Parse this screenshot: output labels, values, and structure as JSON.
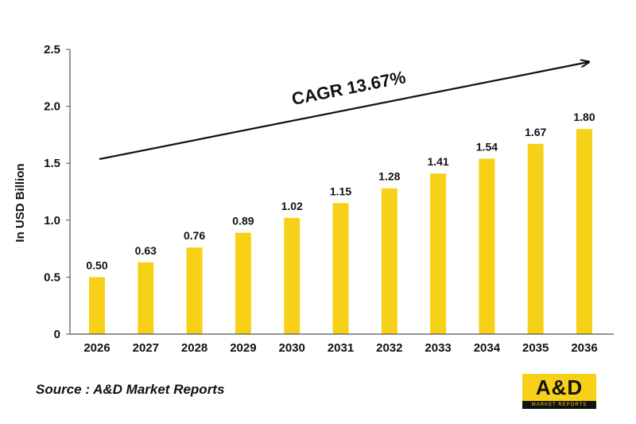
{
  "chart_data": {
    "type": "bar",
    "categories": [
      "2026",
      "2027",
      "2028",
      "2029",
      "2030",
      "2031",
      "2032",
      "2033",
      "2034",
      "2035",
      "2036"
    ],
    "values": [
      0.5,
      0.63,
      0.76,
      0.89,
      1.02,
      1.15,
      1.28,
      1.41,
      1.54,
      1.67,
      1.8
    ],
    "data_labels": [
      "0.50",
      "0.63",
      "0.76",
      "0.89",
      "1.02",
      "1.15",
      "1.28",
      "1.41",
      "1.54",
      "1.67",
      "1.80"
    ],
    "ylabel": "In USD Billion",
    "ylim": [
      0,
      2.5
    ],
    "y_ticks": [
      0,
      0.5,
      1.0,
      1.5,
      2.0,
      2.5
    ],
    "y_tick_labels": [
      "0",
      "0.5",
      "1.0",
      "1.5",
      "2.0",
      "2.5"
    ],
    "annotation": "CAGR 13.67%",
    "bar_color": "#f7d117",
    "grid": false
  },
  "source": "Source : A&D Market Reports",
  "logo": {
    "main": "A&D",
    "sub": "MARKET REPORTS"
  }
}
